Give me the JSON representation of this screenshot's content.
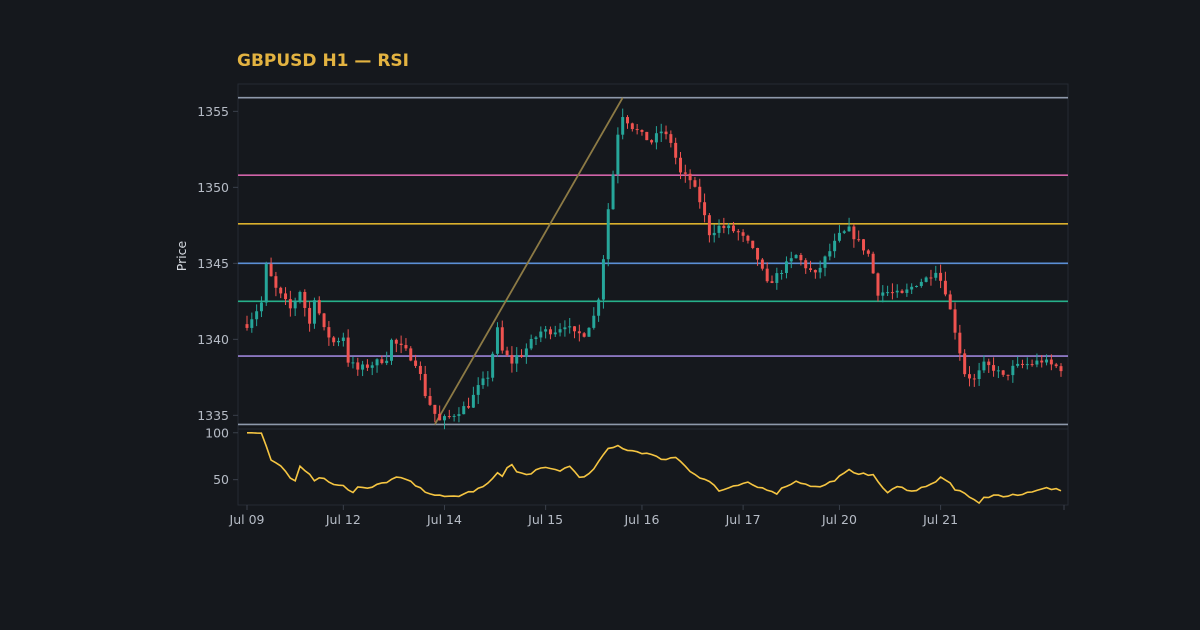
{
  "colors": {
    "background": "#15181d",
    "panel_border": "#252a33",
    "title": "#e3b341",
    "up_candle": "#26a69a",
    "down_candle": "#ef5350",
    "trend_line": "#8c7a45",
    "rsi_line": "#f5c542",
    "tick_text": "#b6bcc6"
  },
  "chart_data": {
    "type": "candlestick",
    "title": "GBPUSD H1 — RSI",
    "ylabel": "Price",
    "xlabel": "",
    "grid": false,
    "price_axis": {
      "ylim": [
        1334.1,
        1356.8
      ],
      "ticks": [
        1335,
        1340,
        1345,
        1350,
        1355
      ],
      "tick_labels": [
        "1335",
        "1340",
        "1345",
        "1350",
        "1355"
      ]
    },
    "rsi_axis": {
      "ylim": [
        23,
        104
      ],
      "ticks": [
        50,
        100
      ],
      "tick_labels": [
        "50",
        "100"
      ]
    },
    "x_axis": {
      "bar_count": 170,
      "tick_bars": [
        0,
        20,
        41,
        62,
        82,
        103,
        123,
        144
      ],
      "tick_labels": [
        "Jul 09",
        "Jul 12",
        "Jul 14",
        "Jul 15",
        "Jul 16",
        "Jul 17",
        "Jul 20",
        "Jul 21"
      ]
    },
    "levels": [
      {
        "price": 1355.9,
        "color": "#8e99ab"
      },
      {
        "price": 1350.8,
        "color": "#d063a8"
      },
      {
        "price": 1347.6,
        "color": "#dbb02d"
      },
      {
        "price": 1345.0,
        "color": "#5b8fd6"
      },
      {
        "price": 1342.5,
        "color": "#26b08a"
      },
      {
        "price": 1338.9,
        "color": "#9b84d8"
      },
      {
        "price": 1334.4,
        "color": "#8e99ab"
      }
    ],
    "trend_line": {
      "from": {
        "bar": 39,
        "price": 1334.4
      },
      "to": {
        "bar": 78,
        "price": 1355.9
      }
    },
    "price_path": [
      [
        0,
        1341.0
      ],
      [
        3,
        1342.4
      ],
      [
        4,
        1344.8
      ],
      [
        6,
        1343.3
      ],
      [
        9,
        1342.0
      ],
      [
        11,
        1343.2
      ],
      [
        13,
        1341.0
      ],
      [
        14,
        1342.8
      ],
      [
        16,
        1340.6
      ],
      [
        18,
        1339.8
      ],
      [
        20,
        1340.2
      ],
      [
        21,
        1338.6
      ],
      [
        23,
        1338.0
      ],
      [
        27,
        1338.5
      ],
      [
        29,
        1338.8
      ],
      [
        30,
        1339.9
      ],
      [
        33,
        1339.2
      ],
      [
        35,
        1338.5
      ],
      [
        36,
        1337.6
      ],
      [
        37,
        1336.4
      ],
      [
        39,
        1335.1
      ],
      [
        40,
        1334.6
      ],
      [
        42,
        1334.9
      ],
      [
        46,
        1335.7
      ],
      [
        48,
        1336.8
      ],
      [
        50,
        1337.6
      ],
      [
        52,
        1340.6
      ],
      [
        53,
        1339.2
      ],
      [
        55,
        1338.5
      ],
      [
        56,
        1338.9
      ],
      [
        57,
        1339.0
      ],
      [
        59,
        1339.8
      ],
      [
        61,
        1340.5
      ],
      [
        64,
        1340.6
      ],
      [
        66,
        1341.0
      ],
      [
        68,
        1340.3
      ],
      [
        70,
        1340.4
      ],
      [
        72,
        1341.5
      ],
      [
        73,
        1342.8
      ],
      [
        74,
        1345.4
      ],
      [
        75,
        1348.6
      ],
      [
        76,
        1350.9
      ],
      [
        77,
        1353.6
      ],
      [
        78,
        1354.8
      ],
      [
        80,
        1354.0
      ],
      [
        82,
        1353.4
      ],
      [
        84,
        1353.0
      ],
      [
        86,
        1353.7
      ],
      [
        88,
        1353.0
      ],
      [
        90,
        1350.9
      ],
      [
        92,
        1350.5
      ],
      [
        94,
        1349.1
      ],
      [
        96,
        1347.0
      ],
      [
        98,
        1347.4
      ],
      [
        100,
        1347.3
      ],
      [
        102,
        1347.0
      ],
      [
        104,
        1346.3
      ],
      [
        106,
        1345.3
      ],
      [
        108,
        1343.6
      ],
      [
        110,
        1344.2
      ],
      [
        112,
        1344.9
      ],
      [
        114,
        1345.5
      ],
      [
        116,
        1344.8
      ],
      [
        118,
        1344.2
      ],
      [
        120,
        1345.3
      ],
      [
        123,
        1346.8
      ],
      [
        125,
        1347.2
      ],
      [
        127,
        1346.4
      ],
      [
        129,
        1345.6
      ],
      [
        131,
        1343.1
      ],
      [
        133,
        1343.1
      ],
      [
        136,
        1342.9
      ],
      [
        139,
        1343.7
      ],
      [
        141,
        1344.0
      ],
      [
        143,
        1344.6
      ],
      [
        145,
        1343.2
      ],
      [
        147,
        1340.6
      ],
      [
        149,
        1337.8
      ],
      [
        151,
        1337.3
      ],
      [
        153,
        1338.3
      ],
      [
        155,
        1338.1
      ],
      [
        157,
        1337.5
      ],
      [
        159,
        1338.1
      ],
      [
        161,
        1338.3
      ],
      [
        163,
        1338.4
      ],
      [
        165,
        1338.6
      ],
      [
        167,
        1338.3
      ],
      [
        169,
        1338.1
      ]
    ],
    "rsi_path": [
      [
        0,
        100
      ],
      [
        3,
        100
      ],
      [
        5,
        72
      ],
      [
        7,
        66
      ],
      [
        9,
        52
      ],
      [
        10,
        50
      ],
      [
        11,
        64
      ],
      [
        13,
        56
      ],
      [
        14,
        50
      ],
      [
        16,
        52
      ],
      [
        17,
        48
      ],
      [
        18,
        46
      ],
      [
        20,
        44
      ],
      [
        21,
        40
      ],
      [
        22,
        36
      ],
      [
        23,
        42
      ],
      [
        25,
        40
      ],
      [
        27,
        44
      ],
      [
        29,
        48
      ],
      [
        31,
        52
      ],
      [
        33,
        50
      ],
      [
        35,
        44
      ],
      [
        36,
        40
      ],
      [
        37,
        38
      ],
      [
        39,
        34
      ],
      [
        41,
        31
      ],
      [
        44,
        33
      ],
      [
        47,
        38
      ],
      [
        49,
        42
      ],
      [
        51,
        50
      ],
      [
        52,
        58
      ],
      [
        53,
        55
      ],
      [
        54,
        62
      ],
      [
        55,
        66
      ],
      [
        56,
        58
      ],
      [
        58,
        55
      ],
      [
        60,
        60
      ],
      [
        62,
        62
      ],
      [
        65,
        60
      ],
      [
        67,
        64
      ],
      [
        69,
        54
      ],
      [
        70,
        52
      ],
      [
        72,
        60
      ],
      [
        73,
        70
      ],
      [
        74,
        76
      ],
      [
        75,
        82
      ],
      [
        77,
        86
      ],
      [
        79,
        82
      ],
      [
        81,
        80
      ],
      [
        83,
        78
      ],
      [
        85,
        74
      ],
      [
        87,
        72
      ],
      [
        89,
        74
      ],
      [
        90,
        70
      ],
      [
        92,
        60
      ],
      [
        94,
        52
      ],
      [
        96,
        48
      ],
      [
        97,
        44
      ],
      [
        98,
        38
      ],
      [
        100,
        40
      ],
      [
        102,
        44
      ],
      [
        104,
        46
      ],
      [
        106,
        42
      ],
      [
        108,
        40
      ],
      [
        110,
        36
      ],
      [
        112,
        44
      ],
      [
        114,
        48
      ],
      [
        116,
        46
      ],
      [
        118,
        42
      ],
      [
        120,
        44
      ],
      [
        122,
        50
      ],
      [
        124,
        56
      ],
      [
        125,
        60
      ],
      [
        126,
        56
      ],
      [
        128,
        58
      ],
      [
        130,
        54
      ],
      [
        131,
        48
      ],
      [
        132,
        42
      ],
      [
        133,
        36
      ],
      [
        135,
        42
      ],
      [
        137,
        40
      ],
      [
        139,
        38
      ],
      [
        141,
        44
      ],
      [
        143,
        48
      ],
      [
        144,
        52
      ],
      [
        146,
        46
      ],
      [
        147,
        40
      ],
      [
        149,
        34
      ],
      [
        151,
        28
      ],
      [
        152,
        26
      ],
      [
        153,
        30
      ],
      [
        155,
        34
      ],
      [
        157,
        32
      ],
      [
        159,
        33
      ],
      [
        161,
        34
      ],
      [
        163,
        38
      ],
      [
        165,
        41
      ],
      [
        167,
        40
      ],
      [
        169,
        38
      ]
    ]
  }
}
